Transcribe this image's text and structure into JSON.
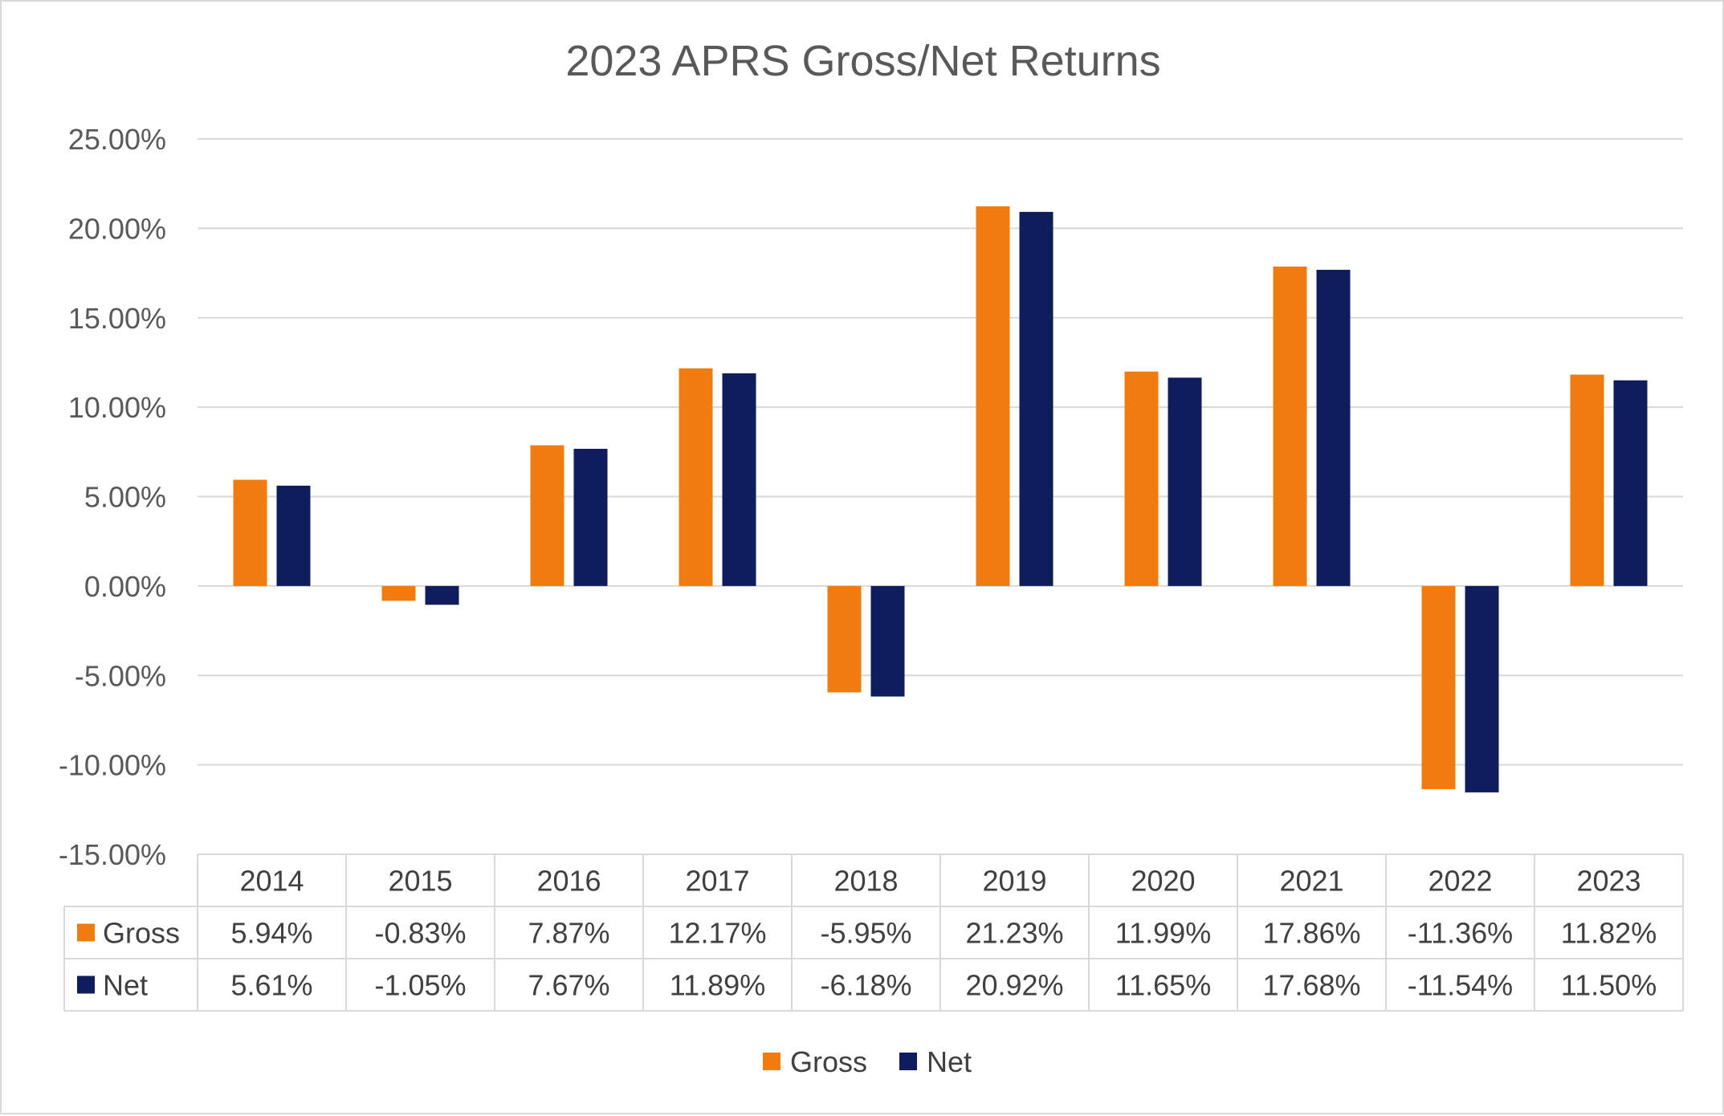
{
  "chart_data": {
    "type": "bar",
    "title": "2023 APRS Gross/Net Returns",
    "categories": [
      "2014",
      "2015",
      "2016",
      "2017",
      "2018",
      "2019",
      "2020",
      "2021",
      "2022",
      "2023"
    ],
    "series": [
      {
        "name": "Gross",
        "color": "#f07c0f",
        "values": [
          5.94,
          -0.83,
          7.87,
          12.17,
          -5.95,
          21.23,
          11.99,
          17.86,
          -11.36,
          11.82
        ],
        "labels": [
          "5.94%",
          "-0.83%",
          "7.87%",
          "12.17%",
          "-5.95%",
          "21.23%",
          "11.99%",
          "17.86%",
          "-11.36%",
          "11.82%"
        ]
      },
      {
        "name": "Net",
        "color": "#0f1d5c",
        "values": [
          5.61,
          -1.05,
          7.67,
          11.89,
          -6.18,
          20.92,
          11.65,
          17.68,
          -11.54,
          11.5
        ],
        "labels": [
          "5.61%",
          "-1.05%",
          "7.67%",
          "11.89%",
          "-6.18%",
          "20.92%",
          "11.65%",
          "17.68%",
          "-11.54%",
          "11.50%"
        ]
      }
    ],
    "ylim": [
      -15,
      25
    ],
    "yticks": [
      25,
      20,
      15,
      10,
      5,
      0,
      -5,
      -10,
      -15
    ],
    "ytick_labels": [
      "25.00%",
      "20.00%",
      "15.00%",
      "10.00%",
      "5.00%",
      "0.00%",
      "-5.00%",
      "-10.00%",
      "-15.00%"
    ],
    "grid": true,
    "data_table": true,
    "legend_position": "bottom"
  }
}
